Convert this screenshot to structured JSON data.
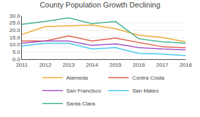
{
  "chart_data": {
    "type": "line",
    "title": "County Population Growth Declining",
    "x": [
      2011,
      2012,
      2013,
      2014,
      2015,
      2016,
      2017,
      2018
    ],
    "series": [
      {
        "name": "Alameda",
        "color": "#f0a830",
        "values": [
          17.0,
          22.5,
          23.0,
          23.5,
          21.0,
          16.5,
          15.0,
          12.0
        ]
      },
      {
        "name": "Contra Costa",
        "color": "#e05c4a",
        "values": [
          12.5,
          12.5,
          16.0,
          12.5,
          14.5,
          11.5,
          8.5,
          8.0
        ]
      },
      {
        "name": "San Francisco",
        "color": "#a050c8",
        "values": [
          11.0,
          12.5,
          12.5,
          9.5,
          10.5,
          8.0,
          7.0,
          6.5
        ]
      },
      {
        "name": "San Mateo",
        "color": "#40c8f0",
        "values": [
          9.0,
          11.0,
          11.0,
          7.0,
          8.0,
          4.0,
          3.5,
          2.5
        ]
      },
      {
        "name": "Santa Clara",
        "color": "#40b090",
        "values": [
          24.0,
          26.0,
          28.5,
          24.5,
          26.0,
          14.0,
          12.0,
          11.0
        ]
      }
    ],
    "xlim": [
      2011,
      2018
    ],
    "xticks": [
      2011,
      2012,
      2013,
      2014,
      2015,
      2016,
      2017,
      2018
    ],
    "ylim": [
      0.0,
      30.0
    ],
    "yticks": [
      {
        "value": 0.0,
        "label": "0.0"
      },
      {
        "value": 5.0,
        "label": "5.0"
      },
      {
        "value": 10.0,
        "label": "10.0"
      },
      {
        "value": 15.0,
        "label": "15.0"
      },
      {
        "value": 20.0,
        "label": "20.0"
      },
      {
        "value": 25.0,
        "label": "25.0"
      },
      {
        "value": 30.0,
        "label": "30.0"
      }
    ],
    "grid": "y",
    "legend": "bottom"
  }
}
